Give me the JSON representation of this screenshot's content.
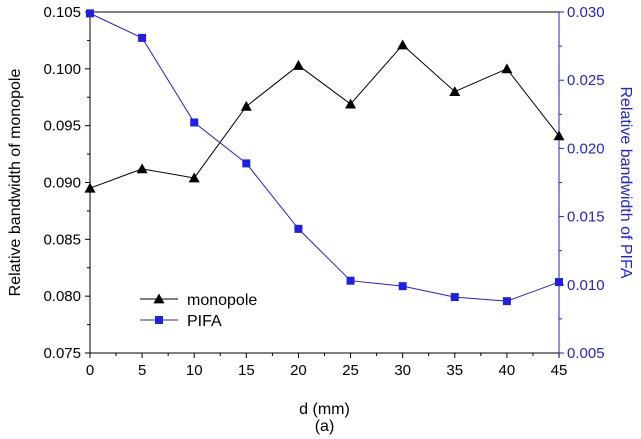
{
  "chart_data": {
    "type": "line",
    "xlabel": "d (mm)",
    "caption": "(a)",
    "x": [
      0,
      5,
      10,
      15,
      20,
      25,
      30,
      35,
      40,
      45
    ],
    "xlim": [
      0,
      45
    ],
    "x_ticks": [
      "0",
      "5",
      "10",
      "15",
      "20",
      "25",
      "30",
      "35",
      "40",
      "45"
    ],
    "y_left": {
      "label": "Relative bandwidth of monopole",
      "lim": [
        0.075,
        0.105
      ],
      "ticks": [
        "0.075",
        "0.080",
        "0.085",
        "0.090",
        "0.095",
        "0.100",
        "0.105"
      ],
      "color": "#000000"
    },
    "y_right": {
      "label": "Relative bandwidth of PIFA",
      "lim": [
        0.005,
        0.03
      ],
      "ticks": [
        "0.005",
        "0.010",
        "0.015",
        "0.020",
        "0.025",
        "0.030"
      ],
      "color": "#1f1fe6"
    },
    "series": [
      {
        "name": "monopole",
        "axis": "left",
        "marker": "triangle",
        "color": "#000000",
        "values": [
          0.0895,
          0.0912,
          0.0904,
          0.0967,
          0.1003,
          0.0969,
          0.1021,
          0.098,
          0.1,
          0.0941
        ]
      },
      {
        "name": "PIFA",
        "axis": "right",
        "marker": "square",
        "color": "#1f1fe6",
        "values": [
          0.0299,
          0.0281,
          0.0219,
          0.0189,
          0.0141,
          0.0103,
          0.0099,
          0.0091,
          0.0088,
          0.0102
        ]
      }
    ],
    "legend_position": "bottom-left",
    "grid": false
  }
}
